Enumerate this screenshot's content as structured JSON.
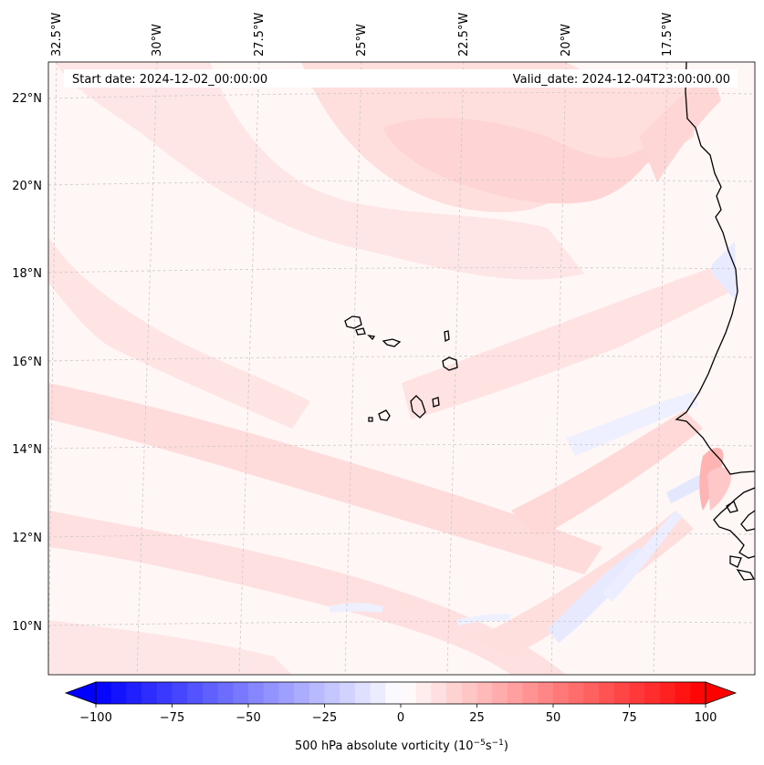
{
  "header": {
    "start_date": "Start date: 2024-12-02_00:00:00",
    "valid_date": "Valid_date: 2024-12-04T23:00:00.00"
  },
  "axes": {
    "longitude_labels": [
      "32.5°W",
      "30°W",
      "27.5°W",
      "25°W",
      "22.5°W",
      "20°W",
      "17.5°W"
    ],
    "latitude_labels": [
      "22°N",
      "20°N",
      "18°N",
      "16°N",
      "14°N",
      "12°N",
      "10°N"
    ]
  },
  "colorbar": {
    "label_main": "500 hPa absolute vorticity (10",
    "label_exp1": "−5",
    "label_mid": "s",
    "label_exp2": "−1",
    "label_end": ")",
    "ticks": [
      "−100",
      "−75",
      "−50",
      "−25",
      "0",
      "25",
      "50",
      "75",
      "100"
    ],
    "min": -100,
    "max": 100,
    "step": 5,
    "colors": {
      "negative": "#0000ff",
      "neutral": "#ffffff",
      "positive": "#ff0000"
    }
  },
  "map_colors": {
    "background": "#fff6f6",
    "light_red": "#ffe0e0",
    "medium_red": "#ffcccc",
    "light_blue": "#eef0ff",
    "coast": "#000000",
    "grid": "#c8c8c8"
  }
}
